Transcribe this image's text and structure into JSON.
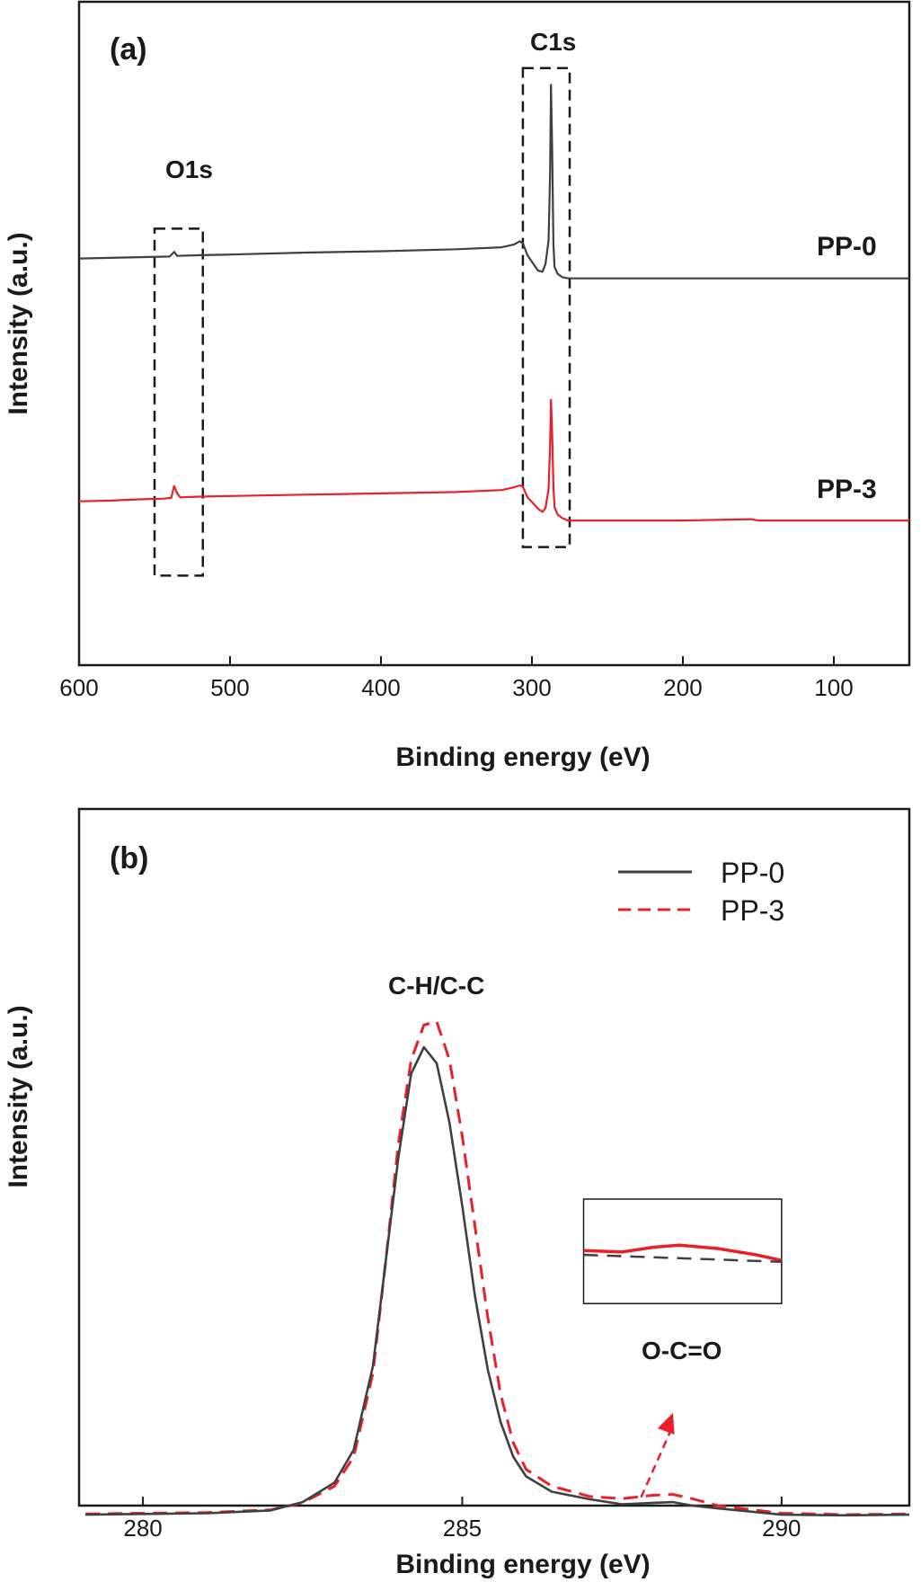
{
  "chart_data": [
    {
      "type": "line",
      "panel_label": "(a)",
      "xlabel": "Binding energy (eV)",
      "ylabel": "Intensity (a.u.)",
      "xlim": [
        600,
        50
      ],
      "x_reversed": true,
      "ylim": [
        0,
        100
      ],
      "x_ticks": [
        600,
        500,
        400,
        300,
        200,
        100
      ],
      "y_ticks_shown": false,
      "grid": false,
      "annotations": [
        {
          "text": "O1s",
          "x": 537,
          "y": 78
        },
        {
          "text": "C1s",
          "x": 287,
          "y": 98
        }
      ],
      "dashed_boxes": [
        {
          "x_range": [
            550,
            518
          ],
          "y_range": [
            13.5,
            65.8
          ]
        },
        {
          "x_range": [
            306,
            275
          ],
          "y_range": [
            17.8,
            90
          ]
        }
      ],
      "series": [
        {
          "name": "PP-0",
          "color": "#404040",
          "points": [
            [
              600,
              61.3
            ],
            [
              580,
              61.4
            ],
            [
              560,
              61.5
            ],
            [
              540,
              61.6
            ],
            [
              537,
              62.3
            ],
            [
              535,
              61.7
            ],
            [
              520,
              61.8
            ],
            [
              500,
              61.9
            ],
            [
              450,
              62.2
            ],
            [
              400,
              62.4
            ],
            [
              350,
              62.7
            ],
            [
              320,
              63.0
            ],
            [
              312,
              63.4
            ],
            [
              308,
              63.9
            ],
            [
              306,
              63.6
            ],
            [
              303,
              61.8
            ],
            [
              300,
              60.8
            ],
            [
              296,
              59.5
            ],
            [
              293,
              59.3
            ],
            [
              291,
              60.5
            ],
            [
              289,
              64.0
            ],
            [
              288,
              74.0
            ],
            [
              287.4,
              87.5
            ],
            [
              286.6,
              78.0
            ],
            [
              285.8,
              63.5
            ],
            [
              285,
              60.0
            ],
            [
              283,
              59.0
            ],
            [
              280,
              58.5
            ],
            [
              276,
              58.3
            ],
            [
              270,
              58.3
            ],
            [
              200,
              58.3
            ],
            [
              150,
              58.3
            ],
            [
              100,
              58.3
            ],
            [
              50,
              58.3
            ]
          ]
        },
        {
          "name": "PP-3",
          "color": "#e8202a",
          "points": [
            [
              600,
              24.7
            ],
            [
              580,
              24.8
            ],
            [
              560,
              25.0
            ],
            [
              545,
              25.1
            ],
            [
              539,
              25.2
            ],
            [
              537,
              27.0
            ],
            [
              535,
              25.9
            ],
            [
              533,
              25.3
            ],
            [
              520,
              25.4
            ],
            [
              500,
              25.5
            ],
            [
              450,
              25.7
            ],
            [
              400,
              25.9
            ],
            [
              350,
              26.1
            ],
            [
              320,
              26.4
            ],
            [
              312,
              26.8
            ],
            [
              308,
              27.1
            ],
            [
              306,
              26.9
            ],
            [
              303,
              25.3
            ],
            [
              300,
              24.6
            ],
            [
              296,
              23.6
            ],
            [
              293,
              23.1
            ],
            [
              291,
              23.7
            ],
            [
              289,
              26.5
            ],
            [
              288,
              33.0
            ],
            [
              287.4,
              40.0
            ],
            [
              286.6,
              35.0
            ],
            [
              285.8,
              27.0
            ],
            [
              285,
              23.8
            ],
            [
              283,
              22.7
            ],
            [
              280,
              22.2
            ],
            [
              276,
              21.8
            ],
            [
              270,
              21.8
            ],
            [
              200,
              21.8
            ],
            [
              155,
              22.0
            ],
            [
              150,
              21.8
            ],
            [
              100,
              21.8
            ],
            [
              50,
              21.8
            ]
          ]
        }
      ]
    },
    {
      "type": "line",
      "panel_label": "(b)",
      "xlabel": "Binding energy (eV)",
      "ylabel": "Intensity (a.u.)",
      "xlim": [
        279,
        292
      ],
      "ylim": [
        0,
        100
      ],
      "x_ticks": [
        280,
        285,
        290
      ],
      "y_ticks_shown": false,
      "grid": false,
      "legend": {
        "placement": "top-right",
        "entries": [
          "PP-0",
          "PP-3"
        ]
      },
      "annotations": [
        {
          "text": "C-H/C-C",
          "x": 284.4,
          "y": 81
        },
        {
          "text": "O-C=O",
          "x": 289.0,
          "y": 15.5
        }
      ],
      "arrow": {
        "from": [
          287.8,
          1.2
        ],
        "to": [
          288.3,
          13.3
        ]
      },
      "inset_box": {
        "x_range": [
          286.9,
          290
        ],
        "y_range": [
          29,
          44
        ]
      },
      "inset_series": [
        {
          "name": "PP-3",
          "color": "#e8202a",
          "points": [
            [
              286.9,
              36.6
            ],
            [
              287.5,
              36.4
            ],
            [
              288.0,
              37.1
            ],
            [
              288.4,
              37.4
            ],
            [
              289.0,
              36.9
            ],
            [
              289.6,
              36.0
            ],
            [
              290,
              35.2
            ]
          ]
        },
        {
          "name": "PP-0",
          "color": "#404040",
          "points": [
            [
              286.9,
              36.0
            ],
            [
              290,
              35.0
            ]
          ]
        }
      ],
      "series": [
        {
          "name": "PP-0",
          "color": "#404040",
          "dash": "solid",
          "points": [
            [
              279.1,
              -1.3
            ],
            [
              280,
              -1.2
            ],
            [
              281,
              -1.1
            ],
            [
              282,
              -0.7
            ],
            [
              282.5,
              0.5
            ],
            [
              283,
              3.3
            ],
            [
              283.3,
              8.0
            ],
            [
              283.6,
              20.0
            ],
            [
              283.8,
              35.0
            ],
            [
              284.0,
              50.0
            ],
            [
              284.2,
              62.0
            ],
            [
              284.4,
              65.8
            ],
            [
              284.6,
              63.5
            ],
            [
              284.8,
              55.0
            ],
            [
              285.0,
              43.0
            ],
            [
              285.2,
              30.0
            ],
            [
              285.4,
              19.5
            ],
            [
              285.6,
              12.0
            ],
            [
              285.8,
              7.0
            ],
            [
              286.0,
              4.2
            ],
            [
              286.4,
              2.0
            ],
            [
              287,
              0.9
            ],
            [
              287.5,
              0.2
            ],
            [
              288,
              0.4
            ],
            [
              288.3,
              0.5
            ],
            [
              288.6,
              0.0
            ],
            [
              289,
              -0.4
            ],
            [
              290,
              -1.3
            ],
            [
              291,
              -1.4
            ],
            [
              292,
              -1.3
            ]
          ]
        },
        {
          "name": "PP-3",
          "color": "#e8202a",
          "dash": "dashed",
          "points": [
            [
              279.1,
              -1.2
            ],
            [
              280,
              -1.1
            ],
            [
              281,
              -1.0
            ],
            [
              282,
              -0.6
            ],
            [
              282.5,
              0.4
            ],
            [
              283,
              2.8
            ],
            [
              283.3,
              7.0
            ],
            [
              283.6,
              19.0
            ],
            [
              283.8,
              35.0
            ],
            [
              284.0,
              52.0
            ],
            [
              284.2,
              64.0
            ],
            [
              284.4,
              69.0
            ],
            [
              284.6,
              69.5
            ],
            [
              284.8,
              64.0
            ],
            [
              285.0,
              53.0
            ],
            [
              285.2,
              40.0
            ],
            [
              285.4,
              27.0
            ],
            [
              285.6,
              16.0
            ],
            [
              285.8,
              9.0
            ],
            [
              286.0,
              5.2
            ],
            [
              286.4,
              2.8
            ],
            [
              287,
              1.3
            ],
            [
              287.5,
              1.0
            ],
            [
              288,
              1.5
            ],
            [
              288.3,
              1.6
            ],
            [
              288.6,
              1.0
            ],
            [
              289,
              0.0
            ],
            [
              290,
              -1.1
            ],
            [
              291,
              -1.3
            ],
            [
              292,
              -1.2
            ]
          ]
        }
      ]
    }
  ],
  "ui": {
    "panel_a": {
      "label": "(a)",
      "xlabel": "Binding energy (eV)",
      "ylabel": "Intensity (a.u.)",
      "o1s": "O1s",
      "c1s": "C1s",
      "series_pp0": "PP-0",
      "series_pp3": "PP-3"
    },
    "panel_b": {
      "label": "(b)",
      "xlabel": "Binding energy (eV)",
      "ylabel": "Intensity (a.u.)",
      "peak": "C-H/C-C",
      "occo": "O-C=O",
      "legend_pp0": "PP-0",
      "legend_pp3": "PP-3"
    }
  }
}
